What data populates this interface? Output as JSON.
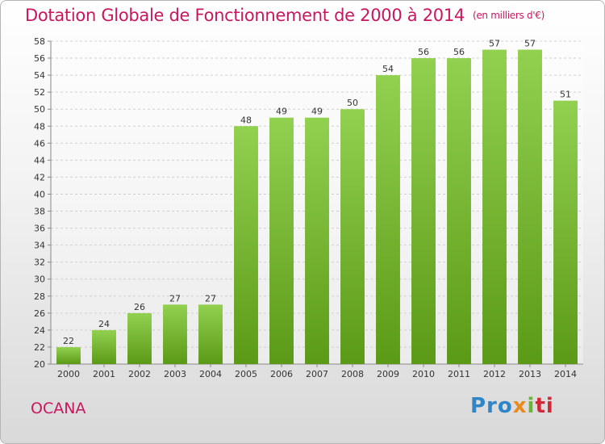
{
  "title": "Dotation Globale de Fonctionnement de 2000 à 2014",
  "subtitle": "(en milliers d'€)",
  "commune": "OCANA",
  "logo": {
    "p1": "Pro",
    "p2": "x",
    "p3": "i",
    "p4": "ti"
  },
  "colors": {
    "bar_top": "#92d050",
    "bar_bottom": "#5b9a16",
    "accent": "#c8175e"
  },
  "chart_data": {
    "type": "bar",
    "categories": [
      "2000",
      "2001",
      "2002",
      "2003",
      "2004",
      "2005",
      "2006",
      "2007",
      "2008",
      "2009",
      "2010",
      "2011",
      "2012",
      "2013",
      "2014"
    ],
    "values": [
      22,
      24,
      26,
      27,
      27,
      48,
      49,
      49,
      50,
      54,
      56,
      56,
      57,
      57,
      51
    ],
    "ylim": [
      20,
      58
    ],
    "ytick_step": 2,
    "grid": true
  }
}
